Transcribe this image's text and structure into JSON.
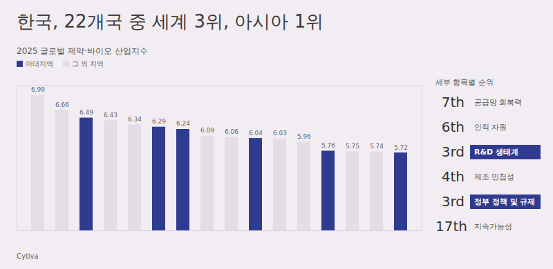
{
  "chart_data": {
    "type": "bar",
    "title": "한국, 22개국 중 세계 3위, 아시아 1위",
    "subtitle": "2025 글로벌 제약·바이오 산업지수",
    "categories": [
      null,
      null,
      null,
      null,
      null,
      null,
      null,
      null,
      null,
      null,
      null,
      null,
      null,
      null,
      null,
      null
    ],
    "series": [
      {
        "name": "아태지역",
        "color": "#2f3b8f",
        "values": [
          null,
          null,
          6.49,
          null,
          null,
          6.29,
          6.24,
          null,
          null,
          6.04,
          null,
          null,
          5.76,
          null,
          null,
          5.72
        ]
      },
      {
        "name": "그 외 지역",
        "color": "#e2dde6",
        "values": [
          6.99,
          6.66,
          null,
          6.43,
          6.34,
          null,
          null,
          6.09,
          6.06,
          null,
          6.03,
          5.96,
          null,
          5.75,
          5.74,
          null
        ]
      }
    ],
    "ylim": [
      4,
      7.2
    ],
    "legend": "top-left",
    "data_labels": true,
    "tick_labels": false
  },
  "panel": {
    "heading": "세부 항목별 순위",
    "items": [
      {
        "rank": "7th",
        "label": "공급망 회복력",
        "highlight": false
      },
      {
        "rank": "6th",
        "label": "인적 자원",
        "highlight": false
      },
      {
        "rank": "3rd",
        "label": "R&D 생태계",
        "highlight": true
      },
      {
        "rank": "4th",
        "label": "제조 민첩성",
        "highlight": false
      },
      {
        "rank": "3rd",
        "label": "정부 정책 및 규제",
        "highlight": true
      },
      {
        "rank": "17th",
        "label": "지속가능성",
        "highlight": false
      }
    ]
  },
  "footer": "Cytiva"
}
